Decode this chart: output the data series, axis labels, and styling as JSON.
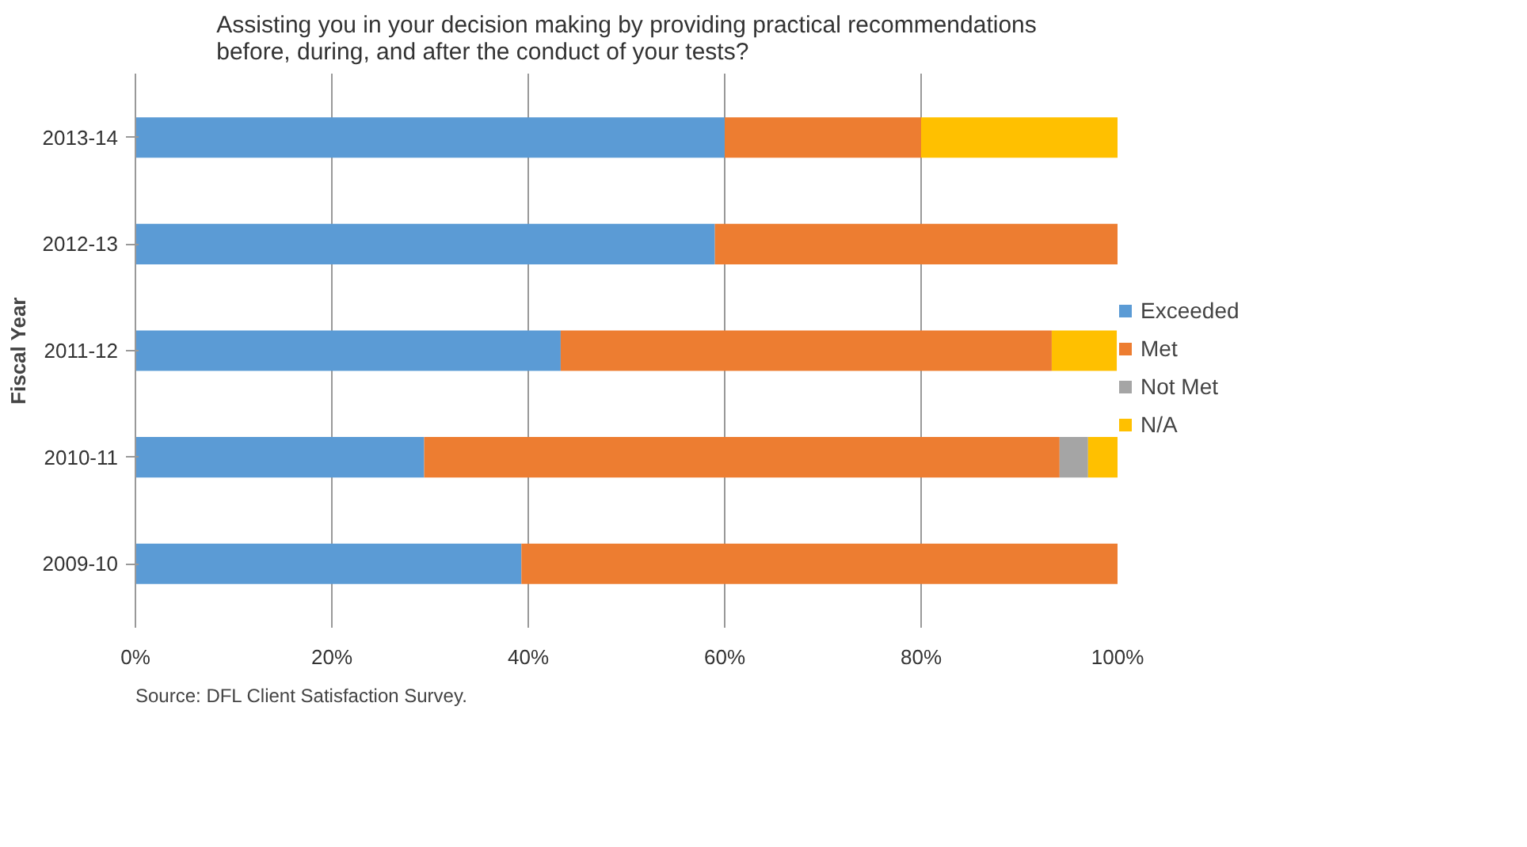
{
  "chart_data": {
    "type": "bar",
    "orientation": "horizontal",
    "stacked": true,
    "title": "Assisting you in your decision making by providing practical recommendations before, during, and after the conduct of your tests?",
    "ylabel": "Fiscal Year",
    "categories": [
      "2013-14",
      "2012-13",
      "2011-12",
      "2010-11",
      "2009-10"
    ],
    "series": [
      {
        "name": "Exceeded",
        "color": "#5b9bd5",
        "values": [
          60,
          59,
          43.3,
          29.4,
          39.3
        ]
      },
      {
        "name": "Met",
        "color": "#ed7d31",
        "values": [
          20,
          41,
          50,
          64.7,
          60.7
        ]
      },
      {
        "name": "Not Met",
        "color": "#a5a5a5",
        "values": [
          0,
          0,
          0,
          2.9,
          0
        ]
      },
      {
        "name": "N/A",
        "color": "#ffc000",
        "values": [
          20,
          0,
          6.7,
          3.0,
          0
        ]
      }
    ],
    "xlim": [
      0,
      100
    ],
    "xticks": [
      {
        "value": 0,
        "label": "0%"
      },
      {
        "value": 20,
        "label": "20%"
      },
      {
        "value": 40,
        "label": "40%"
      },
      {
        "value": 60,
        "label": "60%"
      },
      {
        "value": 80,
        "label": "80%"
      },
      {
        "value": 100,
        "label": "100%"
      }
    ],
    "grid": "x",
    "legend": "right",
    "annotations": [
      "Source: DFL Client Satisfaction Survey."
    ]
  }
}
